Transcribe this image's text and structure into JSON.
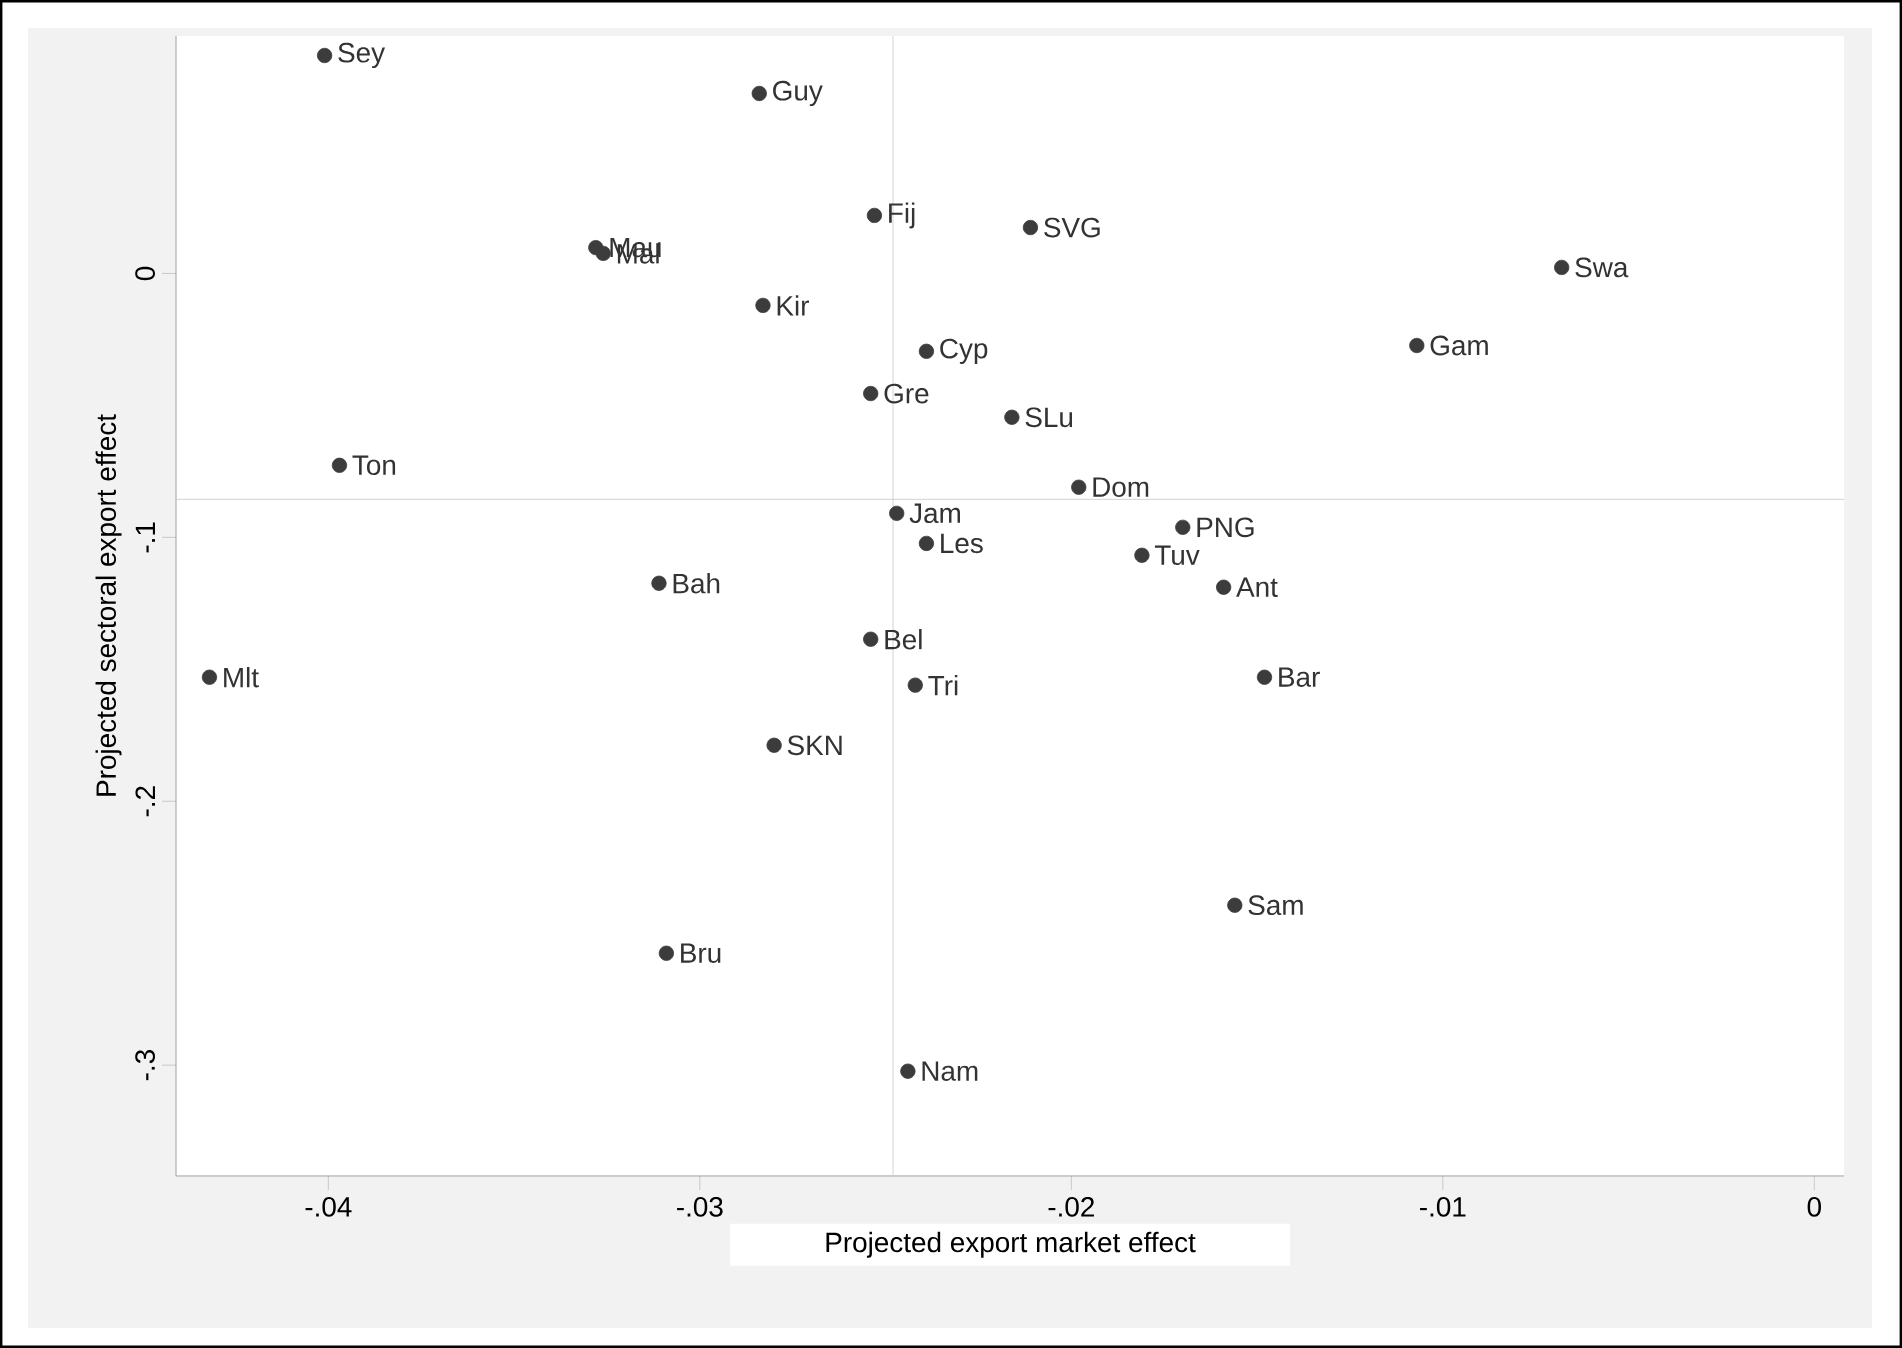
{
  "chart_data": {
    "type": "scatter",
    "xlabel": "Projected export market effect",
    "ylabel": "Projected sectoral export effect",
    "xlim": [
      -0.0441,
      0.0008
    ],
    "ylim": [
      -0.342,
      0.09
    ],
    "xticks": [
      {
        "value": -0.04,
        "label": "-.04"
      },
      {
        "value": -0.03,
        "label": "-.03"
      },
      {
        "value": -0.02,
        "label": "-.02"
      },
      {
        "value": -0.01,
        "label": "-.01"
      },
      0
    ],
    "yticks": [
      {
        "value": -0.3,
        "label": "-.3"
      },
      {
        "value": -0.2,
        "label": "-.2"
      },
      {
        "value": -0.1,
        "label": "-.1"
      },
      0
    ],
    "grid": false,
    "marker": "circle",
    "series": [
      {
        "color": "#3c3c3c",
        "x": [
          -0.0401,
          -0.0284,
          -0.0328,
          -0.0326,
          -0.0253,
          -0.0283,
          -0.0239,
          -0.0254,
          -0.0211,
          -0.0068,
          -0.0107,
          -0.0216,
          -0.0198,
          -0.0247,
          -0.0239,
          -0.017,
          -0.0181,
          -0.0159,
          -0.0254,
          -0.0242,
          -0.0148,
          -0.0397,
          -0.0311,
          -0.0432,
          -0.028,
          -0.0156,
          -0.0309,
          -0.0244
        ],
        "values": [
          0.0826,
          0.0682,
          0.0098,
          0.0076,
          0.022,
          -0.0121,
          -0.0295,
          -0.0455,
          0.0174,
          0.0023,
          -0.0273,
          -0.0545,
          -0.081,
          -0.0909,
          -0.1023,
          -0.0962,
          -0.1068,
          -0.1189,
          -0.1386,
          -0.156,
          -0.153,
          -0.0727,
          -0.1174,
          -0.153,
          -0.1788,
          -0.2394,
          -0.2576,
          -0.3023
        ]
      }
    ],
    "ref_lines": [
      {
        "axis": "x",
        "value": -0.0248,
        "color": "#c8c8c8"
      },
      {
        "axis": "y",
        "value": -0.0856,
        "color": "#c8c8c8"
      }
    ],
    "annotations": [
      {
        "text": "Sey",
        "x": -0.0401,
        "y": 0.0826
      },
      {
        "text": "Guy",
        "x": -0.0284,
        "y": 0.0682
      },
      {
        "text": "Mau",
        "x": -0.0328,
        "y": 0.0098
      },
      {
        "text": "Mal",
        "x": -0.0326,
        "y": 0.0076
      },
      {
        "text": "Fij",
        "x": -0.0253,
        "y": 0.022
      },
      {
        "text": "Kir",
        "x": -0.0283,
        "y": -0.0121
      },
      {
        "text": "Cyp",
        "x": -0.0239,
        "y": -0.0295
      },
      {
        "text": "Gre",
        "x": -0.0254,
        "y": -0.0455
      },
      {
        "text": "SVG",
        "x": -0.0211,
        "y": 0.0174
      },
      {
        "text": "Swa",
        "x": -0.0068,
        "y": 0.0023
      },
      {
        "text": "Gam",
        "x": -0.0107,
        "y": -0.0273
      },
      {
        "text": "SLu",
        "x": -0.0216,
        "y": -0.0545
      },
      {
        "text": "Dom",
        "x": -0.0198,
        "y": -0.081
      },
      {
        "text": "Jam",
        "x": -0.0247,
        "y": -0.0909
      },
      {
        "text": "Les",
        "x": -0.0239,
        "y": -0.1023
      },
      {
        "text": "PNG",
        "x": -0.017,
        "y": -0.0962
      },
      {
        "text": "Tuv",
        "x": -0.0181,
        "y": -0.1068
      },
      {
        "text": "Ant",
        "x": -0.0159,
        "y": -0.1189
      },
      {
        "text": "Bel",
        "x": -0.0254,
        "y": -0.1386
      },
      {
        "text": "Tri",
        "x": -0.0242,
        "y": -0.156
      },
      {
        "text": "Bar",
        "x": -0.0148,
        "y": -0.153
      },
      {
        "text": "Ton",
        "x": -0.0397,
        "y": -0.0727
      },
      {
        "text": "Bah",
        "x": -0.0311,
        "y": -0.1174
      },
      {
        "text": "Mlt",
        "x": -0.0432,
        "y": -0.153
      },
      {
        "text": "SKN",
        "x": -0.028,
        "y": -0.1788
      },
      {
        "text": "Sam",
        "x": -0.0156,
        "y": -0.2394
      },
      {
        "text": "Bru",
        "x": -0.0309,
        "y": -0.2576
      },
      {
        "text": "Nam",
        "x": -0.0244,
        "y": -0.3023
      }
    ]
  }
}
